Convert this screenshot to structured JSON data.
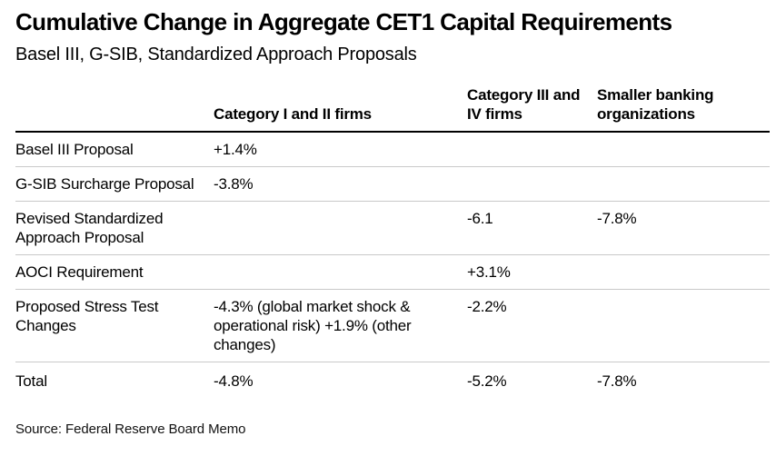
{
  "colors": {
    "background": "#ffffff",
    "text": "#000000",
    "header_rule": "#000000",
    "row_rule": "#c9c9c9"
  },
  "chart_data": {
    "type": "table",
    "title": "Cumulative Change in Aggregate CET1 Capital Requirements",
    "subtitle": "Basel III, G-SIB, Standardized Approach Proposals",
    "source": "Source: Federal Reserve Board Memo",
    "columns": [
      "",
      "Category I and II firms",
      "Category III and IV firms",
      "Smaller banking organizations"
    ],
    "rows": [
      {
        "cells": [
          "Basel III Proposal",
          "+1.4%",
          "",
          ""
        ]
      },
      {
        "cells": [
          "G-SIB Surcharge Proposal",
          "-3.8%",
          "",
          ""
        ]
      },
      {
        "cells": [
          "Revised Standardized Approach Proposal",
          "",
          "-6.1",
          "-7.8%"
        ]
      },
      {
        "cells": [
          "AOCI Requirement",
          "",
          "+3.1%",
          ""
        ]
      },
      {
        "cells": [
          "Proposed Stress Test Changes",
          "-4.3% (global market shock & operational risk) +1.9% (other changes)",
          "-2.2%",
          ""
        ]
      },
      {
        "cells": [
          "Total",
          "-4.8%",
          "-5.2%",
          "-7.8%"
        ]
      }
    ]
  }
}
